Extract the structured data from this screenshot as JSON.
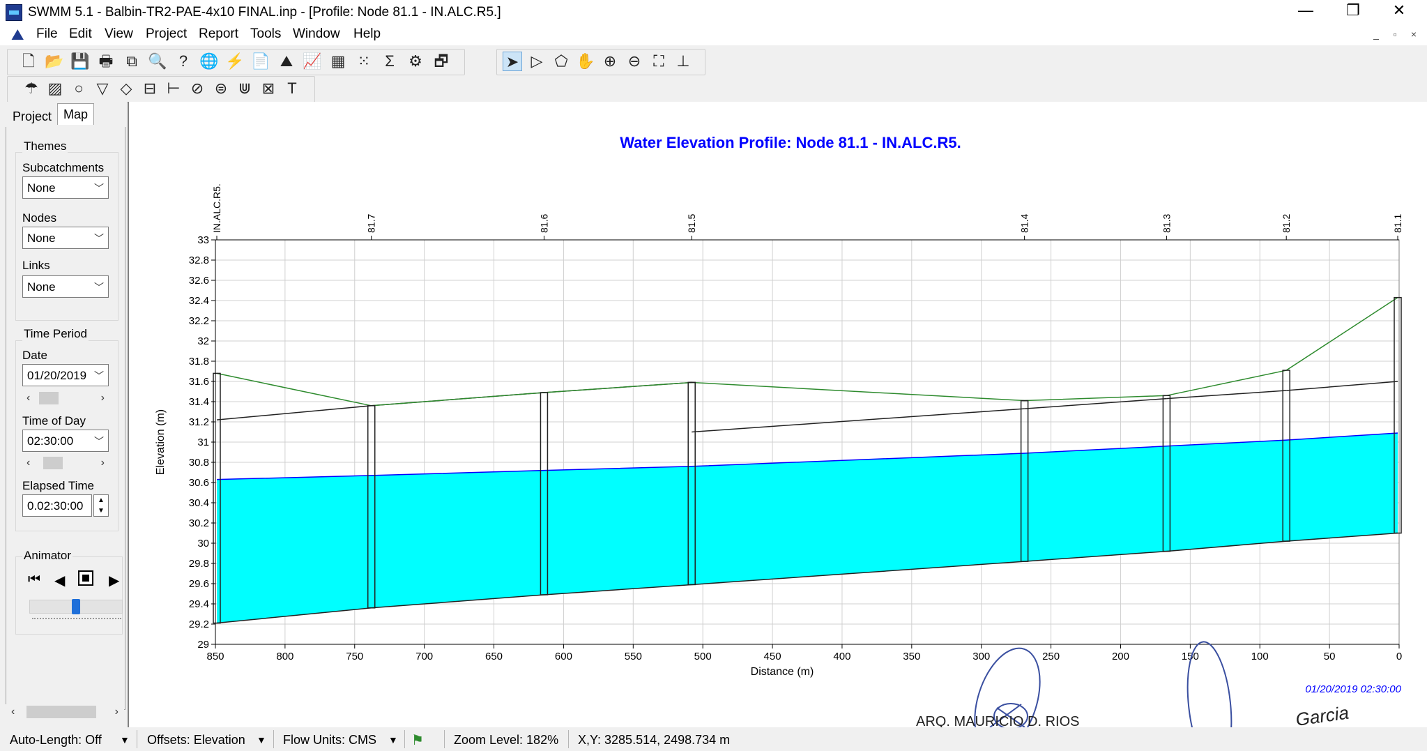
{
  "window": {
    "title": "SWMM 5.1 - Balbin-TR2-PAE-4x10 FINAL.inp - [Profile: Node 81.1 - IN.ALC.R5.]",
    "minimize": "—",
    "restore": "❐",
    "close": "✕"
  },
  "menu": [
    "File",
    "Edit",
    "View",
    "Project",
    "Report",
    "Tools",
    "Window",
    "Help"
  ],
  "mdi": {
    "minimize": "_",
    "restore": "▫",
    "close": "×"
  },
  "toolbar1": [
    {
      "name": "new-file-icon",
      "glyph": "🗋"
    },
    {
      "name": "open-folder-icon",
      "glyph": "📂"
    },
    {
      "name": "save-icon",
      "glyph": "💾"
    },
    {
      "name": "print-icon",
      "glyph": "🖶"
    },
    {
      "name": "copy-icon",
      "glyph": "⧉"
    },
    {
      "name": "find-icon",
      "glyph": "🔍"
    },
    {
      "name": "query-icon",
      "glyph": "?"
    },
    {
      "name": "globe-overview-icon",
      "glyph": "🌐"
    },
    {
      "name": "run-lightning-icon",
      "glyph": "⚡"
    },
    {
      "name": "report-icon",
      "glyph": "📄"
    },
    {
      "name": "profile-plot-icon",
      "glyph": "⛰"
    },
    {
      "name": "time-series-icon",
      "glyph": "📈"
    },
    {
      "name": "table-icon",
      "glyph": "▦"
    },
    {
      "name": "scatter-plot-icon",
      "glyph": "⁙"
    },
    {
      "name": "statistics-sigma-icon",
      "glyph": "Σ"
    },
    {
      "name": "options-icon",
      "glyph": "⚙"
    },
    {
      "name": "arrange-windows-icon",
      "glyph": "🗗"
    }
  ],
  "toolbar_map": [
    {
      "name": "select-arrow-icon",
      "glyph": "➤",
      "selected": true
    },
    {
      "name": "select-vertex-icon",
      "glyph": "▷"
    },
    {
      "name": "select-region-icon",
      "glyph": "⬠"
    },
    {
      "name": "pan-hand-icon",
      "glyph": "✋"
    },
    {
      "name": "zoom-in-icon",
      "glyph": "⊕"
    },
    {
      "name": "zoom-out-icon",
      "glyph": "⊖"
    },
    {
      "name": "full-extent-icon",
      "glyph": "⛶"
    },
    {
      "name": "measure-icon",
      "glyph": "⊥"
    }
  ],
  "toolbar2": [
    {
      "name": "rain-gage-icon",
      "glyph": "☂"
    },
    {
      "name": "subcatchment-icon",
      "glyph": "▨"
    },
    {
      "name": "junction-icon",
      "glyph": "○"
    },
    {
      "name": "outfall-icon",
      "glyph": "▽"
    },
    {
      "name": "divider-icon",
      "glyph": "◇"
    },
    {
      "name": "storage-icon",
      "glyph": "⊟"
    },
    {
      "name": "conduit-icon",
      "glyph": "⊢"
    },
    {
      "name": "pump-icon",
      "glyph": "⊘"
    },
    {
      "name": "orifice-icon",
      "glyph": "⊜"
    },
    {
      "name": "weir-icon",
      "glyph": "⋓"
    },
    {
      "name": "outlet-icon",
      "glyph": "⊠"
    },
    {
      "name": "text-label-icon",
      "glyph": "T"
    }
  ],
  "browser": {
    "tabs": [
      "Project",
      "Map"
    ],
    "active_tab": "Map",
    "themes": {
      "heading": "Themes",
      "subcatchments_label": "Subcatchments",
      "subcatchments_value": "None",
      "nodes_label": "Nodes",
      "nodes_value": "None",
      "links_label": "Links",
      "links_value": "None"
    },
    "time_period": {
      "heading": "Time Period",
      "date_label": "Date",
      "date_value": "01/20/2019",
      "time_label": "Time of Day",
      "time_value": "02:30:00",
      "elapsed_label": "Elapsed Time",
      "elapsed_value": "0.02:30:00"
    },
    "animator": {
      "heading": "Animator",
      "speed_fraction": 0.5
    }
  },
  "status": {
    "auto_length": "Auto-Length: Off",
    "offsets": "Offsets: Elevation",
    "flow_units": "Flow Units: CMS",
    "zoom": "Zoom Level: 182%",
    "xy": "X,Y: 3285.514, 2498.734 m"
  },
  "stamp_text": {
    "left": "ARQ. MAURICIO D. RIOS",
    "right": "Garcia"
  },
  "chart_data": {
    "type": "line",
    "title": "Water Elevation Profile: Node 81.1 - IN.ALC.R5.",
    "xlabel": "Distance (m)",
    "ylabel": "Elevation (m)",
    "timestamp": "01/20/2019 02:30:00",
    "xlim": [
      850,
      0
    ],
    "ylim": [
      29,
      33
    ],
    "x_ticks": [
      850,
      800,
      750,
      700,
      650,
      600,
      550,
      500,
      450,
      400,
      350,
      300,
      250,
      200,
      150,
      100,
      50,
      0
    ],
    "y_ticks": [
      "29",
      "29.2",
      "29.4",
      "29.6",
      "29.8",
      "30",
      "30.2",
      "30.4",
      "30.6",
      "30.8",
      "31",
      "31.2",
      "31.4",
      "31.6",
      "31.8",
      "32",
      "32.2",
      "32.4",
      "32.6",
      "32.8",
      "33"
    ],
    "grid": true,
    "nodes": [
      {
        "label": "IN.ALC.R5.",
        "distance": 849,
        "invert": 29.21,
        "top": 31.68
      },
      {
        "label": "81.7",
        "distance": 738,
        "invert": 29.36,
        "top": 31.36
      },
      {
        "label": "81.6",
        "distance": 614,
        "invert": 29.49,
        "top": 31.49
      },
      {
        "label": "81.5",
        "distance": 508,
        "invert": 29.59,
        "top": 31.59
      },
      {
        "label": "81.4",
        "distance": 269,
        "invert": 29.82,
        "top": 31.41
      },
      {
        "label": "81.3",
        "distance": 167,
        "invert": 29.92,
        "top": 31.46
      },
      {
        "label": "81.2",
        "distance": 81,
        "invert": 30.02,
        "top": 31.71
      },
      {
        "label": "81.1",
        "distance": 1,
        "invert": 30.1,
        "top": 32.43
      }
    ],
    "links": [
      {
        "from_invert": 29.21,
        "to_invert": 29.36,
        "from_crown": 31.22,
        "to_crown": 31.36
      },
      {
        "from_invert": 29.36,
        "to_invert": 29.49,
        "from_crown": 31.36,
        "to_crown": 31.49
      },
      {
        "from_invert": 29.49,
        "to_invert": 29.59,
        "from_crown": 31.49,
        "to_crown": 31.59
      },
      {
        "from_invert": 29.59,
        "to_invert": 29.82,
        "from_crown": 31.1,
        "to_crown": 31.33
      },
      {
        "from_invert": 29.82,
        "to_invert": 29.92,
        "from_crown": 31.33,
        "to_crown": 31.43
      },
      {
        "from_invert": 29.92,
        "to_invert": 30.02,
        "from_crown": 31.43,
        "to_crown": 31.51
      },
      {
        "from_invert": 30.02,
        "to_invert": 30.1,
        "from_crown": 31.51,
        "to_crown": 31.6
      }
    ],
    "water_surface": [
      30.63,
      30.67,
      30.72,
      30.76,
      30.89,
      30.96,
      31.02,
      31.09
    ],
    "colors": {
      "water": "#00ffff",
      "water_line": "#0000ff",
      "ground": "#2e8b2e",
      "title": "#0000ff",
      "timestamp": "#0000ff"
    }
  }
}
